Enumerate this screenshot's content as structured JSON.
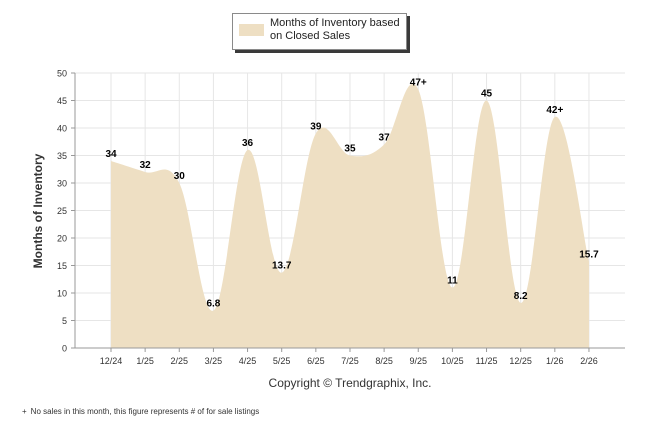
{
  "legend": {
    "label": "Months of Inventory based on Closed Sales"
  },
  "colors": {
    "area_fill": "#eedfc3",
    "grid": "#e6e6e6",
    "axis": "#999999",
    "text": "#000000",
    "tick_text": "#333333"
  },
  "copyright": "Copyright © Trendgraphix, Inc.",
  "footnote": {
    "symbol": "+",
    "text": "No sales in this month, this figure represents # of for sale listings"
  },
  "chart_data": {
    "type": "area",
    "title": "",
    "xlabel": "",
    "ylabel": "Months of Inventory",
    "ylim": [
      0,
      50
    ],
    "yticks": [
      0,
      5,
      10,
      15,
      20,
      25,
      30,
      35,
      40,
      45,
      50
    ],
    "grid": true,
    "legend_position": "top-center",
    "categories": [
      "12/24",
      "1/25",
      "2/25",
      "3/25",
      "4/25",
      "5/25",
      "6/25",
      "7/25",
      "8/25",
      "9/25",
      "10/25",
      "11/25",
      "12/25",
      "1/26",
      "2/26"
    ],
    "series": [
      {
        "name": "Months of Inventory based on Closed Sales",
        "values": [
          34,
          32,
          30,
          6.8,
          36,
          13.7,
          39,
          35,
          37,
          47,
          11,
          45,
          8.2,
          42,
          15.7
        ],
        "labels": [
          "34",
          "32",
          "30",
          "6.8",
          "36",
          "13.7",
          "39",
          "35",
          "37",
          "47+",
          "11",
          "45",
          "8.2",
          "42+",
          "15.7"
        ]
      }
    ]
  }
}
